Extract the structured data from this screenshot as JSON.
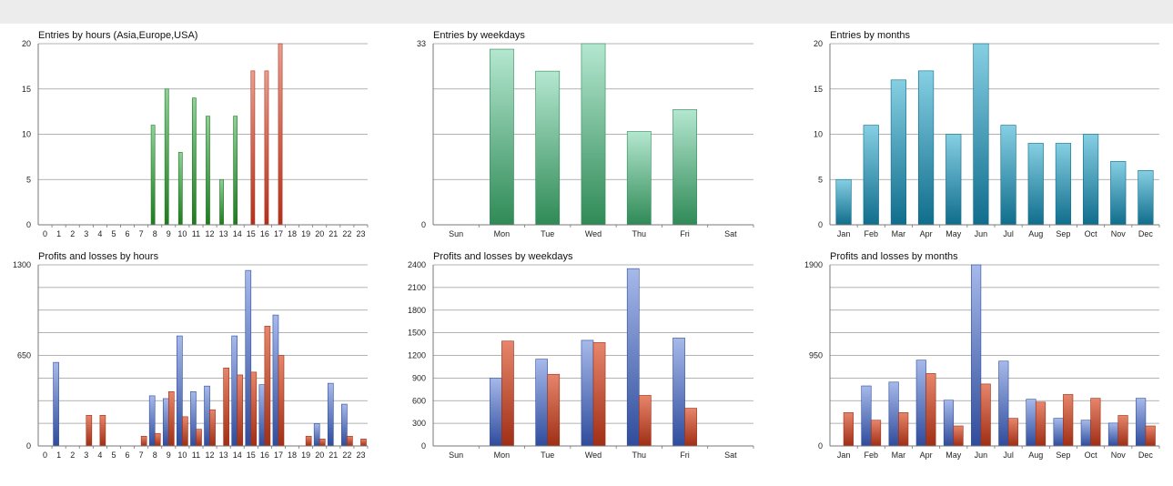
{
  "colors": {
    "green_top": "#8fd09a",
    "green_bottom": "#1f7a1f",
    "red_top": "#e8a090",
    "red_bottom": "#b1301a",
    "teal_top": "#b4e7d0",
    "teal_bottom": "#2f8a56",
    "cyan_top": "#86cfe3",
    "cyan_bottom": "#0f6d8c",
    "blue_top": "#a6b9ea",
    "blue_bottom": "#2f4c9c",
    "brown_top": "#e6866c",
    "brown_bottom": "#9f2e14",
    "grid": "#9a9a9a",
    "topbar": "#ececec"
  },
  "chart_data": [
    {
      "id": "entries-hours",
      "type": "bar",
      "title": "Entries by hours (Asia,Europe,USA)",
      "categories": [
        "0",
        "1",
        "2",
        "3",
        "4",
        "5",
        "6",
        "7",
        "8",
        "9",
        "10",
        "11",
        "12",
        "13",
        "14",
        "15",
        "16",
        "17",
        "18",
        "19",
        "20",
        "21",
        "22",
        "23"
      ],
      "series": [
        {
          "values": [
            0,
            0,
            0,
            0,
            0,
            0,
            0,
            0,
            11,
            15,
            8,
            14,
            12,
            5,
            12,
            0,
            0,
            0,
            0,
            0,
            0,
            0,
            0,
            0
          ],
          "color": "green"
        },
        {
          "values": [
            0,
            0,
            0,
            0,
            0,
            0,
            0,
            0,
            0,
            0,
            0,
            0,
            0,
            0,
            0,
            17,
            17,
            20,
            0,
            0,
            0,
            0,
            0,
            0
          ],
          "color": "red"
        }
      ],
      "ylim": [
        0,
        20
      ],
      "yticks": [
        0,
        5,
        10,
        15,
        20
      ],
      "grid": true
    },
    {
      "id": "entries-weekdays",
      "type": "bar",
      "title": "Entries by weekdays",
      "categories": [
        "Sun",
        "Mon",
        "Tue",
        "Wed",
        "Thu",
        "Fri",
        "Sat"
      ],
      "series": [
        {
          "values": [
            0,
            32,
            28,
            33,
            17,
            21,
            0
          ],
          "color": "teal"
        }
      ],
      "ylim": [
        0,
        33
      ],
      "yticks": [
        0,
        33
      ],
      "grid": true
    },
    {
      "id": "entries-months",
      "type": "bar",
      "title": "Entries by months",
      "categories": [
        "Jan",
        "Feb",
        "Mar",
        "Apr",
        "May",
        "Jun",
        "Jul",
        "Aug",
        "Sep",
        "Oct",
        "Nov",
        "Dec"
      ],
      "series": [
        {
          "values": [
            5,
            11,
            16,
            17,
            10,
            20,
            11,
            9,
            9,
            10,
            7,
            6
          ],
          "color": "cyan"
        }
      ],
      "ylim": [
        0,
        20
      ],
      "yticks": [
        0,
        5,
        10,
        15,
        20
      ],
      "grid": true
    },
    {
      "id": "pl-hours",
      "type": "bar",
      "title": "Profits and losses by hours",
      "categories": [
        "0",
        "1",
        "2",
        "3",
        "4",
        "5",
        "6",
        "7",
        "8",
        "9",
        "10",
        "11",
        "12",
        "13",
        "14",
        "15",
        "16",
        "17",
        "18",
        "19",
        "20",
        "21",
        "22",
        "23"
      ],
      "series": [
        {
          "values": [
            0,
            600,
            0,
            0,
            0,
            0,
            0,
            0,
            360,
            340,
            790,
            390,
            430,
            0,
            790,
            1260,
            440,
            940,
            0,
            0,
            160,
            450,
            300,
            0
          ],
          "color": "blue"
        },
        {
          "values": [
            0,
            0,
            0,
            220,
            220,
            0,
            0,
            70,
            90,
            390,
            210,
            120,
            260,
            560,
            510,
            530,
            860,
            650,
            0,
            70,
            50,
            0,
            70,
            50
          ],
          "color": "brown"
        }
      ],
      "ylim": [
        0,
        1300
      ],
      "yticks": [
        0,
        650,
        1300
      ],
      "grid": true
    },
    {
      "id": "pl-weekdays",
      "type": "bar",
      "title": "Profits and losses by weekdays",
      "categories": [
        "Sun",
        "Mon",
        "Tue",
        "Wed",
        "Thu",
        "Fri",
        "Sat"
      ],
      "series": [
        {
          "values": [
            0,
            900,
            1150,
            1400,
            2350,
            1430,
            0
          ],
          "color": "blue"
        },
        {
          "values": [
            0,
            1390,
            950,
            1370,
            670,
            500,
            0
          ],
          "color": "brown"
        }
      ],
      "ylim": [
        0,
        2400
      ],
      "yticks": [
        0,
        300,
        600,
        900,
        1200,
        1500,
        1800,
        2100,
        2400
      ],
      "grid": true
    },
    {
      "id": "pl-months",
      "type": "bar",
      "title": "Profits and losses by months",
      "categories": [
        "Jan",
        "Feb",
        "Mar",
        "Apr",
        "May",
        "Jun",
        "Jul",
        "Aug",
        "Sep",
        "Oct",
        "Nov",
        "Dec"
      ],
      "series": [
        {
          "values": [
            0,
            630,
            670,
            900,
            480,
            1900,
            890,
            490,
            290,
            270,
            240,
            500
          ],
          "color": "blue"
        },
        {
          "values": [
            350,
            270,
            350,
            760,
            210,
            650,
            290,
            460,
            540,
            500,
            320,
            210
          ],
          "color": "brown"
        }
      ],
      "ylim": [
        0,
        1900
      ],
      "yticks": [
        0,
        950,
        1900
      ],
      "grid": true
    }
  ]
}
